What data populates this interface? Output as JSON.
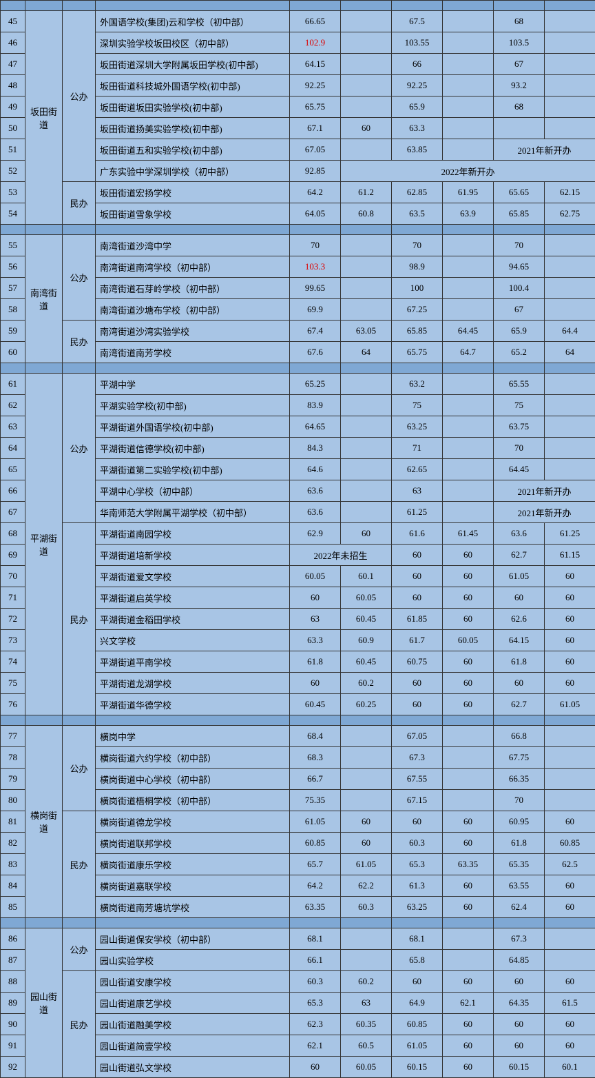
{
  "notes": {
    "new2021": "2021年新开办",
    "new2022": "2022年新开办",
    "noEnroll2022": "2022年未招生"
  },
  "sections": [
    {
      "district": "坂田街道",
      "groups": [
        {
          "type": "公办",
          "rows": [
            {
              "idx": 45,
              "name": "外国语学校(集团)云和学校（初中部）",
              "v": [
                "66.65",
                "",
                "67.5",
                "",
                "68",
                ""
              ]
            },
            {
              "idx": 46,
              "name": "深圳实验学校坂田校区（初中部）",
              "v": [
                "102.9",
                "",
                "103.55",
                "",
                "103.5",
                ""
              ],
              "red": [
                0
              ]
            },
            {
              "idx": 47,
              "name": "坂田街道深圳大学附属坂田学校(初中部)",
              "v": [
                "64.15",
                "",
                "66",
                "",
                "67",
                ""
              ]
            },
            {
              "idx": 48,
              "name": "坂田街道科技城外国语学校(初中部)",
              "v": [
                "92.25",
                "",
                "92.25",
                "",
                "93.2",
                ""
              ]
            },
            {
              "idx": 49,
              "name": "坂田街道坂田实验学校(初中部)",
              "v": [
                "65.75",
                "",
                "65.9",
                "",
                "68",
                ""
              ]
            },
            {
              "idx": 50,
              "name": "坂田街道扬美实验学校(初中部)",
              "v": [
                "67.1",
                "60",
                "63.3",
                "",
                "",
                ""
              ]
            },
            {
              "idx": 51,
              "name": "坂田街道五和实验学校(初中部)",
              "v": [
                "67.05",
                "",
                "63.85",
                "",
                ""
              ],
              "span2021": 4
            },
            {
              "idx": 52,
              "name": "广东实验中学深圳学校（初中部）",
              "v": [
                "92.85",
                ""
              ],
              "span2022": 1
            }
          ]
        },
        {
          "type": "民办",
          "rows": [
            {
              "idx": 53,
              "name": "坂田街道宏扬学校",
              "v": [
                "64.2",
                "61.2",
                "62.85",
                "61.95",
                "65.65",
                "62.15"
              ]
            },
            {
              "idx": 54,
              "name": "坂田街道雪象学校",
              "v": [
                "64.05",
                "60.8",
                "63.5",
                "63.9",
                "65.85",
                "62.75"
              ]
            }
          ]
        }
      ]
    },
    {
      "district": "南湾街道",
      "groups": [
        {
          "type": "公办",
          "rows": [
            {
              "idx": 55,
              "name": "南湾街道沙湾中学",
              "v": [
                "70",
                "",
                "70",
                "",
                "70",
                ""
              ]
            },
            {
              "idx": 56,
              "name": "南湾街道南湾学校（初中部）",
              "v": [
                "103.3",
                "",
                "98.9",
                "",
                "94.65",
                ""
              ],
              "red": [
                0
              ]
            },
            {
              "idx": 57,
              "name": "南湾街道石芽岭学校（初中部）",
              "v": [
                "99.65",
                "",
                "100",
                "",
                "100.4",
                ""
              ]
            },
            {
              "idx": 58,
              "name": "南湾街道沙塘布学校（初中部）",
              "v": [
                "69.9",
                "",
                "67.25",
                "",
                "67",
                ""
              ]
            }
          ]
        },
        {
          "type": "民办",
          "rows": [
            {
              "idx": 59,
              "name": "南湾街道沙湾实验学校",
              "v": [
                "67.4",
                "63.05",
                "65.85",
                "64.45",
                "65.9",
                "64.4"
              ]
            },
            {
              "idx": 60,
              "name": "南湾街道南芳学校",
              "v": [
                "67.6",
                "64",
                "65.75",
                "64.7",
                "65.2",
                "64"
              ]
            }
          ]
        }
      ]
    },
    {
      "district": "平湖街道",
      "groups": [
        {
          "type": "公办",
          "rows": [
            {
              "idx": 61,
              "name": "平湖中学",
              "v": [
                "65.25",
                "",
                "63.2",
                "",
                "65.55",
                ""
              ]
            },
            {
              "idx": 62,
              "name": "平湖实验学校(初中部)",
              "v": [
                "83.9",
                "",
                "75",
                "",
                "75",
                ""
              ]
            },
            {
              "idx": 63,
              "name": "平湖街道外国语学校(初中部)",
              "v": [
                "64.65",
                "",
                "63.25",
                "",
                "63.75",
                ""
              ]
            },
            {
              "idx": 64,
              "name": "平湖街道信德学校(初中部)",
              "v": [
                "84.3",
                "",
                "71",
                "",
                "70",
                ""
              ]
            },
            {
              "idx": 65,
              "name": "平湖街道第二实验学校(初中部)",
              "v": [
                "64.6",
                "",
                "62.65",
                "",
                "64.45",
                ""
              ]
            },
            {
              "idx": 66,
              "name": "平湖中心学校（初中部）",
              "v": [
                "63.6",
                "",
                "63",
                "",
                ""
              ],
              "span2021": 4
            },
            {
              "idx": 67,
              "name": "华南师范大学附属平湖学校（初中部）",
              "v": [
                "63.6",
                "",
                "61.25",
                "",
                ""
              ],
              "span2021": 4
            }
          ]
        },
        {
          "type": "民办",
          "rows": [
            {
              "idx": 68,
              "name": "平湖街道南园学校",
              "v": [
                "62.9",
                "60",
                "61.6",
                "61.45",
                "63.6",
                "61.25"
              ]
            },
            {
              "idx": 69,
              "name": "平湖街道培新学校",
              "v": [
                "",
                "",
                "60",
                "60",
                "62.7",
                "61.15"
              ],
              "noEnroll2022": 0
            },
            {
              "idx": 70,
              "name": "平湖街道爱文学校",
              "v": [
                "60.05",
                "60.1",
                "60",
                "60",
                "61.05",
                "60"
              ]
            },
            {
              "idx": 71,
              "name": "平湖街道启英学校",
              "v": [
                "60",
                "60.05",
                "60",
                "60",
                "60",
                "60"
              ]
            },
            {
              "idx": 72,
              "name": "平湖街道金稻田学校",
              "v": [
                "63",
                "60.45",
                "61.85",
                "60",
                "62.6",
                "60"
              ]
            },
            {
              "idx": 73,
              "name": "兴文学校",
              "v": [
                "63.3",
                "60.9",
                "61.7",
                "60.05",
                "64.15",
                "60"
              ]
            },
            {
              "idx": 74,
              "name": "平湖街道平南学校",
              "v": [
                "61.8",
                "60.45",
                "60.75",
                "60",
                "61.8",
                "60"
              ]
            },
            {
              "idx": 75,
              "name": "平湖街道龙湖学校",
              "v": [
                "60",
                "60.2",
                "60",
                "60",
                "60",
                "60"
              ]
            },
            {
              "idx": 76,
              "name": "平湖街道华德学校",
              "v": [
                "60.45",
                "60.25",
                "60",
                "60",
                "62.7",
                "61.05"
              ]
            }
          ]
        }
      ]
    },
    {
      "district": "横岗街道",
      "groups": [
        {
          "type": "公办",
          "rows": [
            {
              "idx": 77,
              "name": "横岗中学",
              "v": [
                "68.4",
                "",
                "67.05",
                "",
                "66.8",
                ""
              ]
            },
            {
              "idx": 78,
              "name": "横岗街道六约学校（初中部）",
              "v": [
                "68.3",
                "",
                "67.3",
                "",
                "67.75",
                ""
              ]
            },
            {
              "idx": 79,
              "name": "横岗街道中心学校（初中部）",
              "v": [
                "66.7",
                "",
                "67.55",
                "",
                "66.35",
                ""
              ]
            },
            {
              "idx": 80,
              "name": "横岗街道梧桐学校（初中部）",
              "v": [
                "75.35",
                "",
                "67.15",
                "",
                "70",
                ""
              ]
            }
          ]
        },
        {
          "type": "民办",
          "rows": [
            {
              "idx": 81,
              "name": "横岗街道德龙学校",
              "v": [
                "61.05",
                "60",
                "60",
                "60",
                "60.95",
                "60"
              ]
            },
            {
              "idx": 82,
              "name": "横岗街道联邦学校",
              "v": [
                "60.85",
                "60",
                "60.3",
                "60",
                "61.8",
                "60.85"
              ]
            },
            {
              "idx": 83,
              "name": "横岗街道康乐学校",
              "v": [
                "65.7",
                "61.05",
                "65.3",
                "63.35",
                "65.35",
                "62.5"
              ]
            },
            {
              "idx": 84,
              "name": "横岗街道嘉联学校",
              "v": [
                "64.2",
                "62.2",
                "61.3",
                "60",
                "63.55",
                "60"
              ]
            },
            {
              "idx": 85,
              "name": "横岗街道南芳塘坑学校",
              "v": [
                "63.35",
                "60.3",
                "63.25",
                "60",
                "62.4",
                "60"
              ]
            }
          ]
        }
      ]
    },
    {
      "district": "园山街道",
      "groups": [
        {
          "type": "公办",
          "rows": [
            {
              "idx": 86,
              "name": "园山街道保安学校（初中部）",
              "v": [
                "68.1",
                "",
                "68.1",
                "",
                "67.3",
                ""
              ]
            },
            {
              "idx": 87,
              "name": "园山实验学校",
              "v": [
                "66.1",
                "",
                "65.8",
                "",
                "64.85",
                ""
              ]
            }
          ]
        },
        {
          "type": "民办",
          "rows": [
            {
              "idx": 88,
              "name": "园山街道安康学校",
              "v": [
                "60.3",
                "60.2",
                "60",
                "60",
                "60",
                "60"
              ]
            },
            {
              "idx": 89,
              "name": "园山街道康艺学校",
              "v": [
                "65.3",
                "63",
                "64.9",
                "62.1",
                "64.35",
                "61.5"
              ]
            },
            {
              "idx": 90,
              "name": "园山街道融美学校",
              "v": [
                "62.3",
                "60.35",
                "60.85",
                "60",
                "60",
                "60"
              ]
            },
            {
              "idx": 91,
              "name": "园山街道简壹学校",
              "v": [
                "62.1",
                "60.5",
                "61.05",
                "60",
                "60",
                "60"
              ]
            },
            {
              "idx": 92,
              "name": "园山街道弘文学校",
              "v": [
                "60",
                "60.05",
                "60.15",
                "60",
                "60.15",
                "60.1"
              ]
            }
          ]
        }
      ]
    }
  ]
}
